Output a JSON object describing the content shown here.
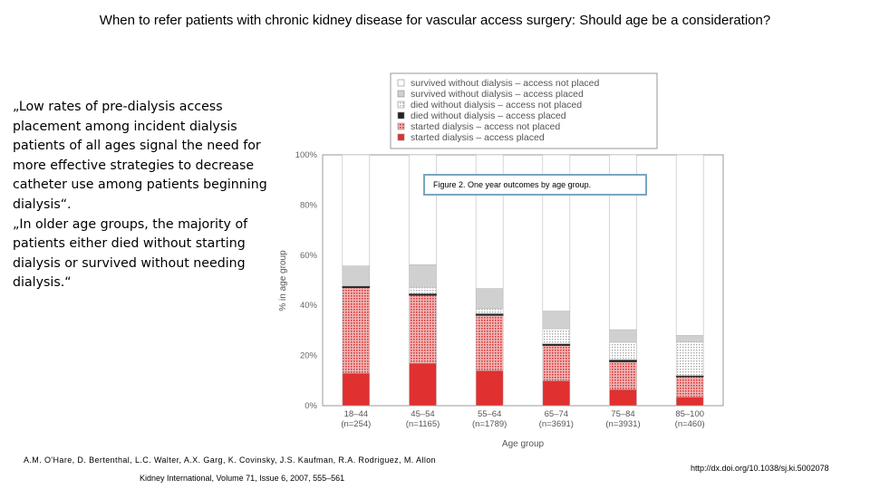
{
  "slide": {
    "title": "When to refer patients with chronic kidney disease for vascular access surgery: Should age be a consideration?",
    "quote_1": "„Low rates of pre-dialysis access placement among incident dialysis patients of all ages signal the need for more effective strategies to decrease catheter use among patients beginning dialysis“.",
    "quote_2": "„In older age groups, the majority of patients either died without starting dialysis or survived without needing dialysis.“",
    "caption": "Figure 2. One year outcomes by age group.",
    "authors": "A.M. O'Hare, D. Bertenthal, L.C. Walter, A.X. Garg, K. Covinsky, J.S. Kaufman, R.A. Rodriguez, M. Allon",
    "journal": "Kidney International, Volume 71, Issue 6, 2007, 555–561",
    "doi": "http://dx.doi.org/10.1038/sj.ki.5002078"
  },
  "chart_data": {
    "type": "bar",
    "stacked": true,
    "xlabel": "Age group",
    "ylabel": "% in age group",
    "ylim": [
      0,
      100
    ],
    "yticks": [
      "0%",
      "20%",
      "40%",
      "60%",
      "80%",
      "100%"
    ],
    "categories": [
      "18–44",
      "45–54",
      "55–64",
      "65–74",
      "75–84",
      "85–100"
    ],
    "n_labels": [
      "(n=254)",
      "(n=1165)",
      "(n=1789)",
      "(n=3691)",
      "(n=3931)",
      "(n=460)"
    ],
    "series": [
      {
        "name": "started dialysis – access placed",
        "color": "#e03030",
        "pattern": "solid-red",
        "values": [
          13,
          17,
          14,
          10,
          6.5,
          3.5
        ]
      },
      {
        "name": "started dialysis – access not placed",
        "color": "#e06060",
        "pattern": "dots-red",
        "values": [
          34,
          27,
          22,
          14,
          11,
          8
        ]
      },
      {
        "name": "died without dialysis – access placed",
        "color": "#222222",
        "pattern": "solid-black",
        "values": [
          0.7,
          0.7,
          0.7,
          0.7,
          0.8,
          0.5
        ]
      },
      {
        "name": "died without dialysis – access not placed",
        "color": "#c8c8c8",
        "pattern": "dots-gray",
        "values": [
          0,
          2.5,
          2,
          6,
          7,
          13.5
        ]
      },
      {
        "name": "survived without dialysis – access placed",
        "color": "#d0d0d0",
        "pattern": "solid-gray",
        "values": [
          8,
          9,
          8,
          7,
          5,
          2.5
        ]
      },
      {
        "name": "survived without dialysis – access not placed",
        "color": "#ffffff",
        "pattern": "white",
        "values": [
          44.3,
          43.8,
          53.3,
          62.3,
          69.7,
          72
        ]
      }
    ]
  }
}
